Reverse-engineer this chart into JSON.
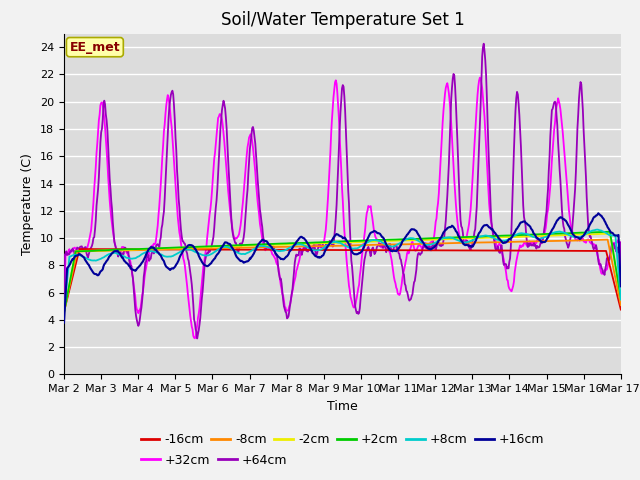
{
  "title": "Soil/Water Temperature Set 1",
  "xlabel": "Time",
  "ylabel": "Temperature (C)",
  "ylim": [
    0,
    25
  ],
  "yticks": [
    0,
    2,
    4,
    6,
    8,
    10,
    12,
    14,
    16,
    18,
    20,
    22,
    24
  ],
  "x_tick_labels": [
    "Mar 2",
    "Mar 3",
    "Mar 4",
    "Mar 5",
    "Mar 6",
    "Mar 7",
    "Mar 8",
    "Mar 9",
    "Mar 10",
    "Mar 11",
    "Mar 12",
    "Mar 13",
    "Mar 14",
    "Mar 15",
    "Mar 16",
    "Mar 17"
  ],
  "x_tick_positions": [
    0,
    1,
    2,
    3,
    4,
    5,
    6,
    7,
    8,
    9,
    10,
    11,
    12,
    13,
    14,
    15
  ],
  "series_labels": [
    "-16cm",
    "-8cm",
    "-2cm",
    "+2cm",
    "+8cm",
    "+16cm",
    "+32cm",
    "+64cm"
  ],
  "series_colors": [
    "#dd0000",
    "#ff8800",
    "#eeee00",
    "#00cc00",
    "#00cccc",
    "#000099",
    "#ff00ff",
    "#9900bb"
  ],
  "background_color": "#dcdcdc",
  "fig_facecolor": "#f2f2f2",
  "annotation_text": "EE_met",
  "annotation_bg": "#ffffaa",
  "annotation_border": "#aaaa00",
  "annotation_text_color": "#880000",
  "title_fontsize": 12,
  "label_fontsize": 9,
  "legend_fontsize": 9,
  "tick_fontsize": 8
}
